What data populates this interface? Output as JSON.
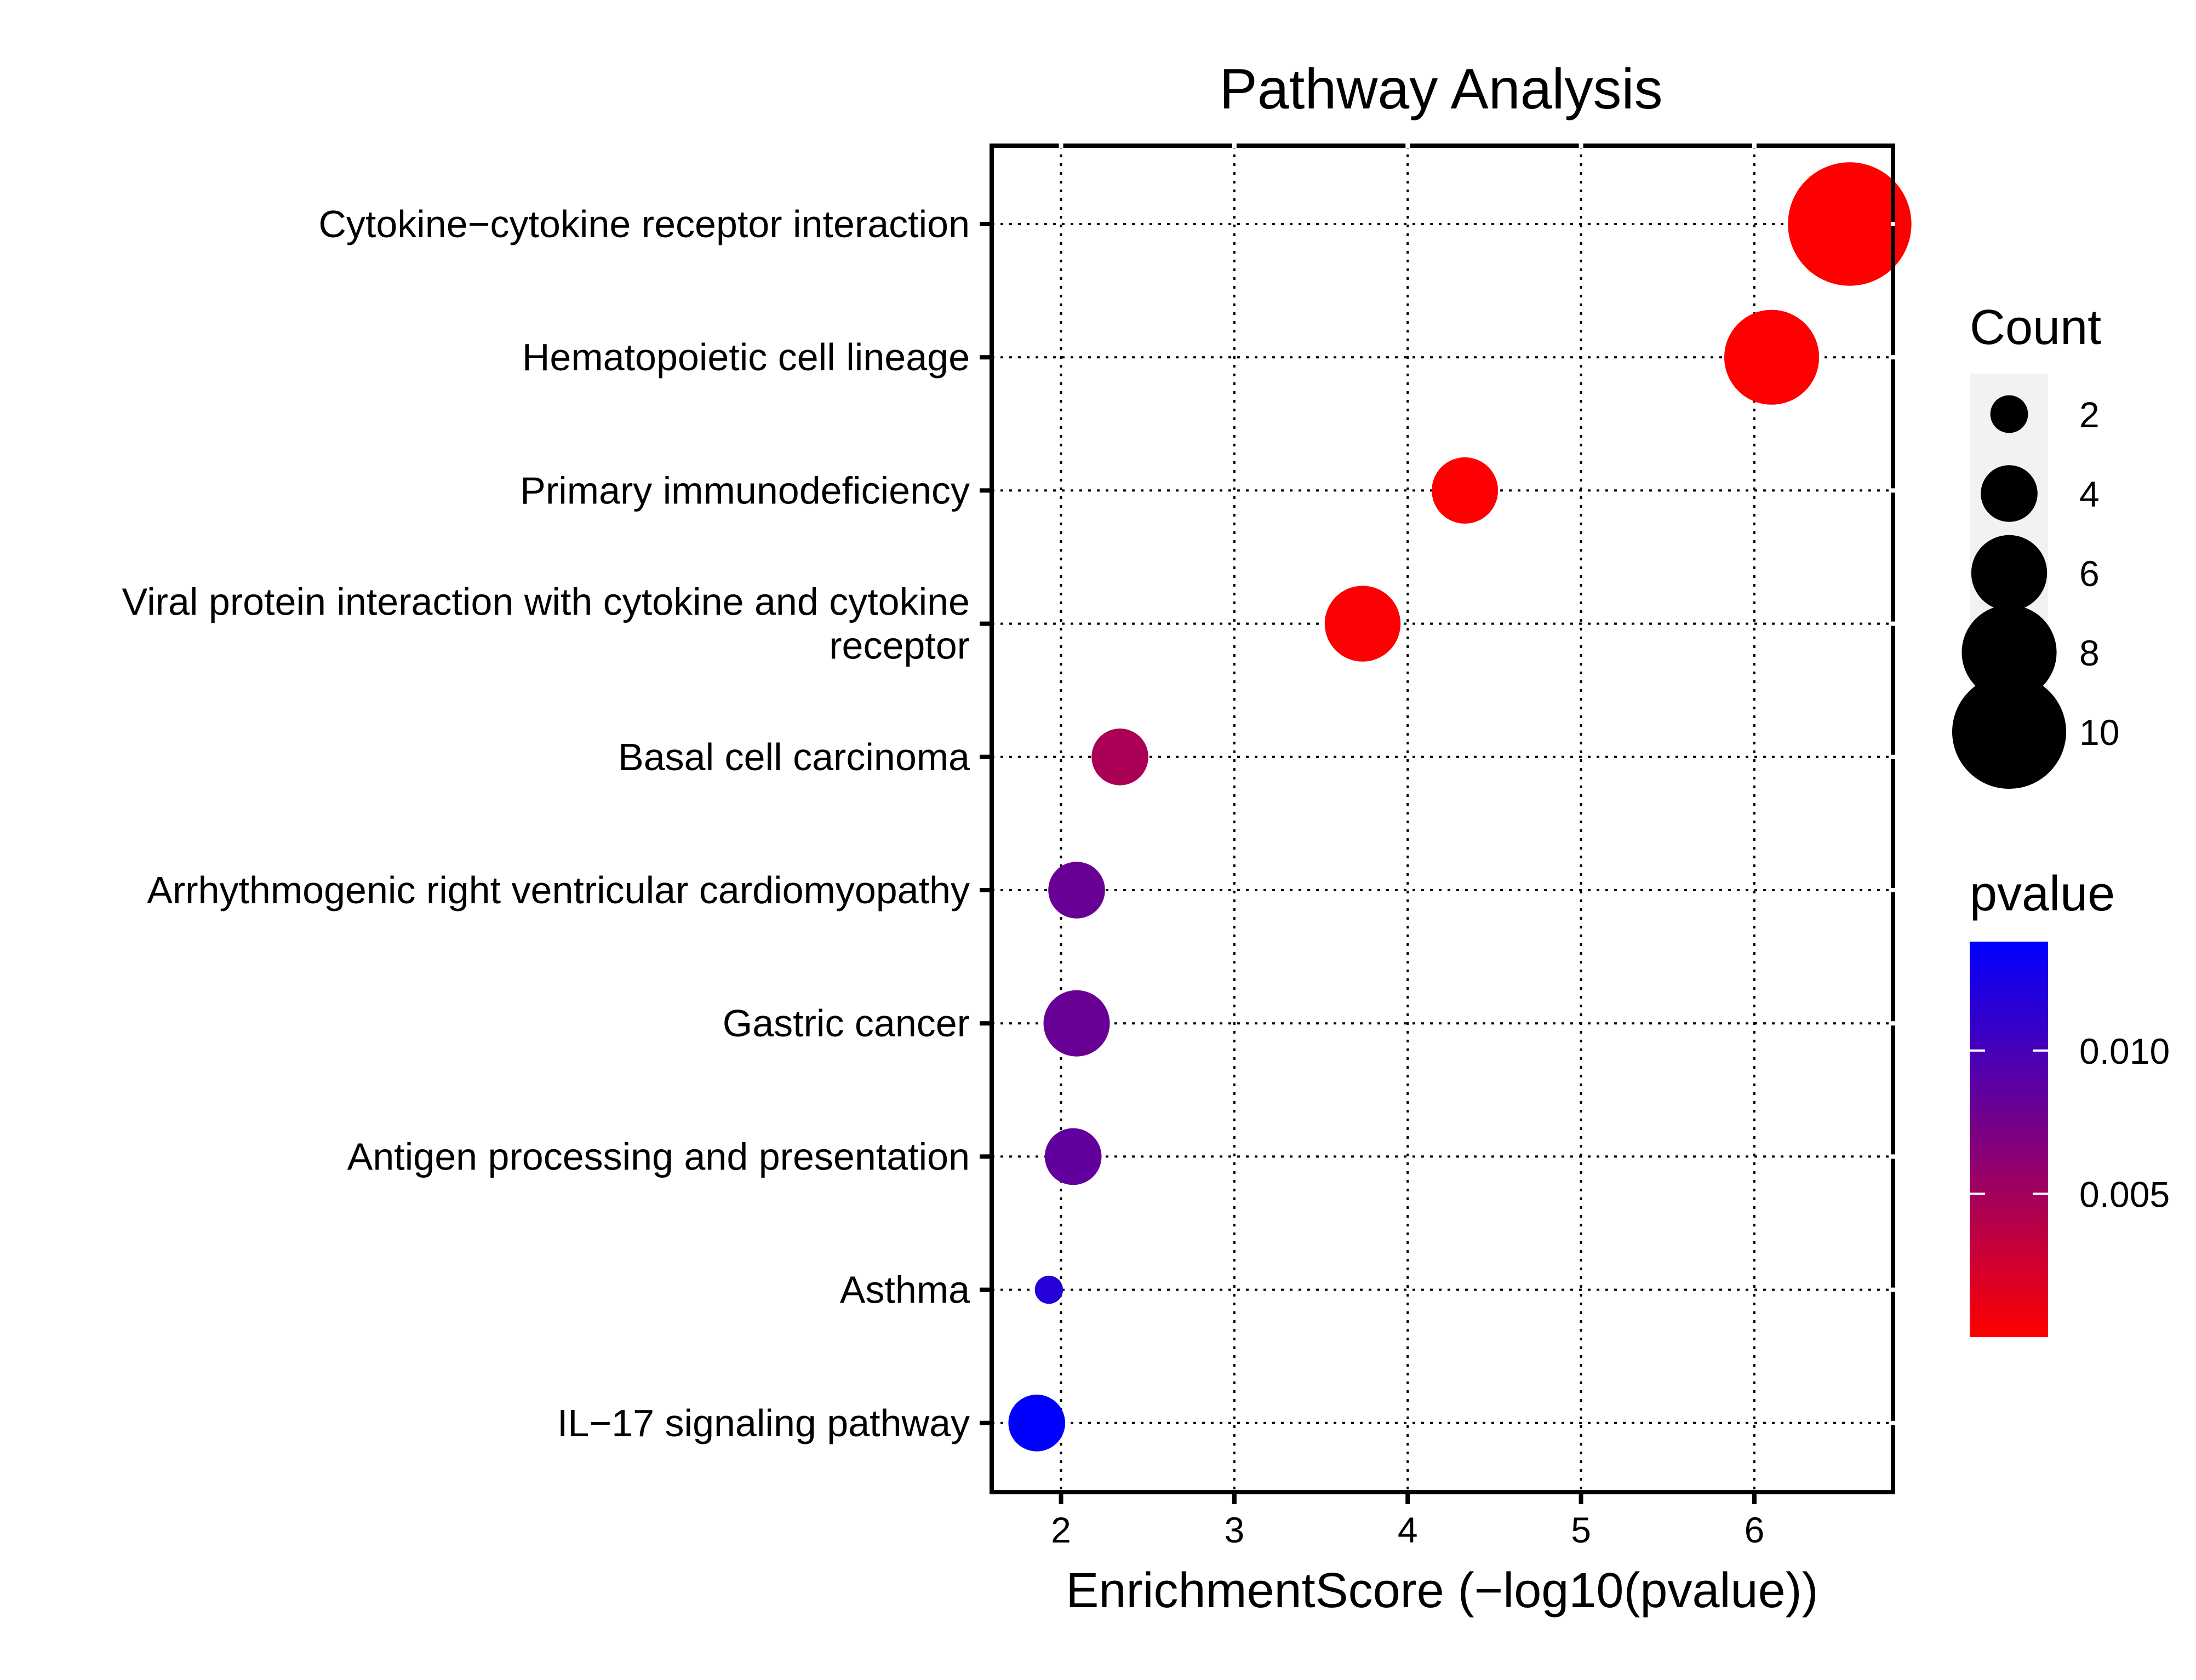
{
  "chart_data": {
    "type": "scatter",
    "title": "Pathway Analysis",
    "xlabel": "EnrichmentScore (−log10(pvalue))",
    "ylabel": "",
    "xlim": [
      1.6,
      6.8
    ],
    "x_ticks": [
      2,
      3,
      4,
      5,
      6
    ],
    "grid": true,
    "legend_position": "right",
    "categories": [
      "Cytokine−cytokine receptor interaction",
      "Hematopoietic cell lineage",
      "Primary immunodeficiency",
      "Viral protein interaction with cytokine and cytokine receptor",
      "Basal cell carcinoma",
      "Arrhythmogenic right ventricular cardiomyopathy",
      "Gastric cancer",
      "Antigen processing and presentation",
      "Asthma",
      "IL−17 signaling pathway"
    ],
    "category_label_lines": [
      [
        "Cytokine−cytokine receptor interaction"
      ],
      [
        "Hematopoietic cell lineage"
      ],
      [
        "Primary immunodeficiency"
      ],
      [
        "Viral protein interaction with cytokine and cytokine",
        "receptor"
      ],
      [
        "Basal cell carcinoma"
      ],
      [
        "Arrhythmogenic right ventricular cardiomyopathy"
      ],
      [
        "Gastric cancer"
      ],
      [
        "Antigen processing and presentation"
      ],
      [
        "Asthma"
      ],
      [
        "IL−17 signaling pathway"
      ]
    ],
    "points": [
      {
        "category": "Cytokine−cytokine receptor interaction",
        "x": 6.55,
        "count": 11,
        "pvalue": 3e-07
      },
      {
        "category": "Hematopoietic cell lineage",
        "x": 6.1,
        "count": 8,
        "pvalue": 8e-07
      },
      {
        "category": "Primary immunodeficiency",
        "x": 4.33,
        "count": 5,
        "pvalue": 4.7e-05
      },
      {
        "category": "Viral protein interaction with cytokine and cytokine receptor",
        "x": 3.74,
        "count": 6,
        "pvalue": 0.00018
      },
      {
        "category": "Basal cell carcinoma",
        "x": 2.34,
        "count": 4,
        "pvalue": 0.0046
      },
      {
        "category": "Arrhythmogenic right ventricular cardiomyopathy",
        "x": 2.09,
        "count": 4,
        "pvalue": 0.0081
      },
      {
        "category": "Gastric cancer",
        "x": 2.09,
        "count": 5,
        "pvalue": 0.0081
      },
      {
        "category": "Antigen processing and presentation",
        "x": 2.07,
        "count": 4,
        "pvalue": 0.0085
      },
      {
        "category": "Asthma",
        "x": 1.93,
        "count": 1,
        "pvalue": 0.0117
      },
      {
        "category": "IL−17 signaling pathway",
        "x": 1.86,
        "count": 4,
        "pvalue": 0.0138
      }
    ],
    "size_legend": {
      "title": "Count",
      "values": [
        2,
        4,
        6,
        8,
        10
      ],
      "labels": [
        "2",
        "4",
        "6",
        "8",
        "10"
      ]
    },
    "color_legend": {
      "title": "pvalue",
      "range": [
        3e-07,
        0.0138
      ],
      "low_color": "#FF0000",
      "high_color": "#0000FF",
      "ticks": [
        0.005,
        0.01
      ],
      "tick_labels": [
        "0.005",
        "0.010"
      ]
    }
  }
}
